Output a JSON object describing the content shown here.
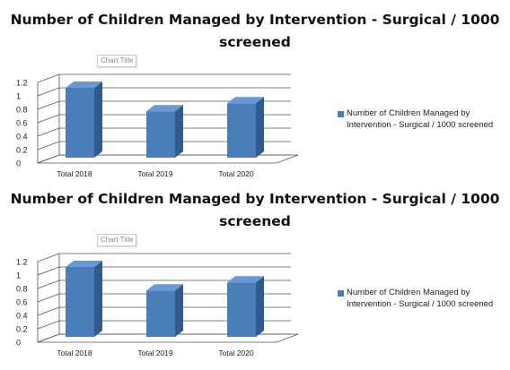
{
  "colors": {
    "bar_front": "#4a7ebb",
    "bar_side": "#2f5a8e",
    "bar_top": "#6a98d2",
    "grid": "#555555"
  },
  "chart_data": [
    {
      "type": "bar",
      "title": "Number of Children Managed by Intervention - Surgical / 1000 screened",
      "placeholder_title": "Chart Title",
      "categories": [
        "Total 2018",
        "Total 2019",
        "Total 2020"
      ],
      "series": [
        {
          "name": "Number of Children Managed by Intervention - Surgical / 1000 screened",
          "values": [
            1.08,
            0.73,
            0.85
          ]
        }
      ],
      "ylim": [
        0,
        1.2
      ],
      "yticks": [
        "0",
        "0.2",
        "0.4",
        "0.6",
        "0.8",
        "1",
        "1.2"
      ],
      "grid": true,
      "legend_position": "right"
    },
    {
      "type": "bar",
      "title": "Number of Children Managed by Intervention - Surgical / 1000 screened",
      "placeholder_title": "Chart Title",
      "categories": [
        "Total 2018",
        "Total 2019",
        "Total 2020"
      ],
      "series": [
        {
          "name": "Number of Children Managed by Intervention - Surgical / 1000 screened",
          "values": [
            1.08,
            0.73,
            0.85
          ]
        }
      ],
      "ylim": [
        0,
        1.2
      ],
      "yticks": [
        "0",
        "0.2",
        "0.4",
        "0.6",
        "0.8",
        "1",
        "1.2"
      ],
      "grid": true,
      "legend_position": "right"
    }
  ]
}
